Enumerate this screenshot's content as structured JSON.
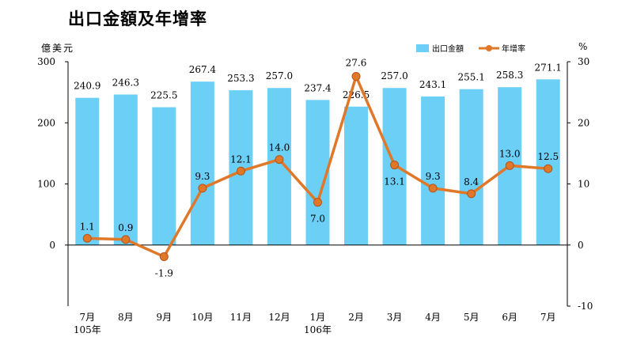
{
  "chart_data": {
    "type": "bar+line",
    "title": "出口金額及年增率",
    "y_left_unit": "億美元",
    "y_right_unit": "%",
    "y_left_range": [
      0,
      300
    ],
    "y_left_display_min": -100,
    "y_left_ticks": [
      "300",
      "200",
      "100",
      "0"
    ],
    "y_right_range": [
      -10,
      30
    ],
    "y_right_ticks": [
      "30",
      "20",
      "10",
      "0",
      "-10"
    ],
    "categories": [
      "7月",
      "8月",
      "9月",
      "10月",
      "11月",
      "12月",
      "1月",
      "2月",
      "3月",
      "4月",
      "5月",
      "6月",
      "7月"
    ],
    "year_labels": [
      {
        "index": 0,
        "text": "105年"
      },
      {
        "index": 6,
        "text": "106年"
      }
    ],
    "series": [
      {
        "name": "出口金額",
        "type": "bar",
        "axis": "left",
        "color": "#6CCFF6",
        "values": [
          240.9,
          246.3,
          225.5,
          267.4,
          253.3,
          257.0,
          237.4,
          226.5,
          257.0,
          243.1,
          255.1,
          258.3,
          271.1
        ],
        "labels": [
          "240.9",
          "246.3",
          "225.5",
          "267.4",
          "253.3",
          "257.0",
          "237.4",
          "226.5",
          "257.0",
          "243.1",
          "255.1",
          "258.3",
          "271.1"
        ]
      },
      {
        "name": "年增率",
        "type": "line",
        "axis": "right",
        "color": "#E0782A",
        "values": [
          1.1,
          0.9,
          -1.9,
          9.3,
          12.1,
          14.0,
          7.0,
          27.6,
          13.1,
          9.3,
          8.4,
          13.0,
          12.5
        ],
        "labels": [
          "1.1",
          "0.9",
          "-1.9",
          "9.3",
          "12.1",
          "14.0",
          "7.0",
          "27.6",
          "13.1",
          "9.3",
          "8.4",
          "13.0",
          "12.5"
        ]
      }
    ],
    "legend_position": "top-right",
    "grid": false
  }
}
